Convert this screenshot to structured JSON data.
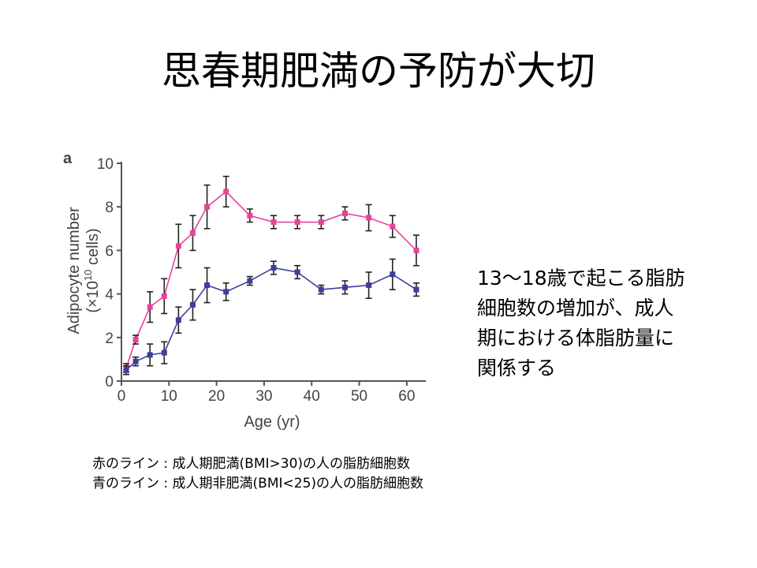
{
  "slide": {
    "title": "思春期肥満の予防が大切",
    "note_lines": [
      "13～18歳で起こる脂肪",
      "細胞数の増加が、成人",
      "期における体脂肪量に",
      "関係する"
    ],
    "legend_lines": [
      "赤のライン : 成人期肥満(BMI>30)の人の脂肪細胞数",
      "青のライン : 成人期非肥満(BMI<25)の人の脂肪細胞数"
    ]
  },
  "chart_data": {
    "type": "line",
    "panel_label": "a",
    "xlabel": "Age (yr)",
    "ylabel_line1": "Adipocyte number",
    "ylabel_line2_prefix": "(×10",
    "ylabel_line2_exp": "10",
    "ylabel_line2_suffix": " cells)",
    "xlim": [
      0,
      64
    ],
    "ylim": [
      0,
      10
    ],
    "xticks": [
      0,
      10,
      20,
      30,
      40,
      50,
      60
    ],
    "yticks": [
      0,
      2,
      4,
      6,
      8,
      10
    ],
    "grid": false,
    "series": [
      {
        "color": "#e8429a",
        "x": [
          1,
          3,
          6,
          9,
          12,
          15,
          18,
          22,
          27,
          32,
          37,
          42,
          47,
          52,
          57,
          62
        ],
        "y": [
          0.6,
          1.9,
          3.4,
          3.9,
          6.2,
          6.8,
          8.0,
          8.7,
          7.6,
          7.3,
          7.3,
          7.3,
          7.7,
          7.5,
          7.1,
          6.0
        ],
        "err": [
          0.2,
          0.2,
          0.7,
          0.8,
          1.0,
          0.8,
          1.0,
          0.7,
          0.3,
          0.3,
          0.3,
          0.3,
          0.3,
          0.6,
          0.5,
          0.7
        ]
      },
      {
        "color": "#3e3e9c",
        "x": [
          1,
          3,
          6,
          9,
          12,
          15,
          18,
          22,
          27,
          32,
          37,
          42,
          47,
          52,
          57,
          62
        ],
        "y": [
          0.5,
          0.9,
          1.2,
          1.3,
          2.8,
          3.5,
          4.4,
          4.1,
          4.6,
          5.2,
          5.0,
          4.2,
          4.3,
          4.4,
          4.9,
          4.2
        ],
        "err": [
          0.2,
          0.2,
          0.5,
          0.5,
          0.6,
          0.7,
          0.8,
          0.4,
          0.2,
          0.3,
          0.3,
          0.2,
          0.3,
          0.6,
          0.7,
          0.3
        ]
      }
    ]
  }
}
